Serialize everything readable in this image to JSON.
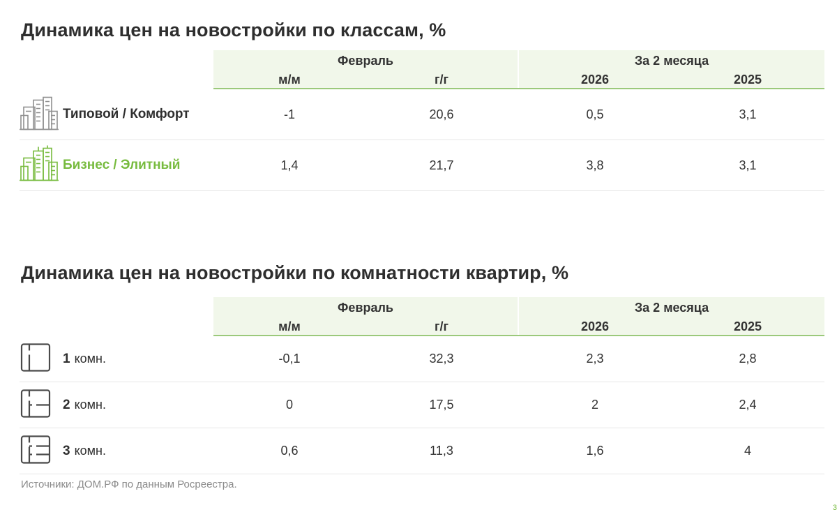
{
  "section_classes": {
    "title": "Динамика цен на новостройки по классам, %",
    "header": {
      "group1": "Февраль",
      "group2": "За 2 месяца",
      "sub": [
        "м/м",
        "г/г",
        "2026",
        "2025"
      ]
    },
    "rows": [
      {
        "label": "Типовой / Комфорт",
        "icon": "buildings-gray-icon",
        "values": [
          "-1",
          "20,6",
          "0,5",
          "3,1"
        ]
      },
      {
        "label": "Бизнес / Элитный",
        "icon": "buildings-green-icon",
        "values": [
          "1,4",
          "21,7",
          "3,8",
          "3,1"
        ]
      }
    ]
  },
  "section_rooms": {
    "title": "Динамика цен на новостройки по комнатности квартир, %",
    "header": {
      "group1": "Февраль",
      "group2": "За 2 месяца",
      "sub": [
        "м/м",
        "г/г",
        "2026",
        "2025"
      ]
    },
    "rows": [
      {
        "num": "1",
        "unit": "комн.",
        "icon": "floorplan-1-room-icon",
        "values": [
          "-0,1",
          "32,3",
          "2,3",
          "2,8"
        ]
      },
      {
        "num": "2",
        "unit": "комн.",
        "icon": "floorplan-2-room-icon",
        "values": [
          "0",
          "17,5",
          "2",
          "2,4"
        ]
      },
      {
        "num": "3",
        "unit": "комн.",
        "icon": "floorplan-3-room-icon",
        "values": [
          "0,6",
          "11,3",
          "1,6",
          "4"
        ]
      }
    ]
  },
  "source": "Источники: ДОМ.РФ по данным Росреестра.",
  "page_number": "3",
  "colors": {
    "accent_green": "#77bb3e",
    "header_bg": "#f1f7ea",
    "header_line": "#9bc97b"
  }
}
